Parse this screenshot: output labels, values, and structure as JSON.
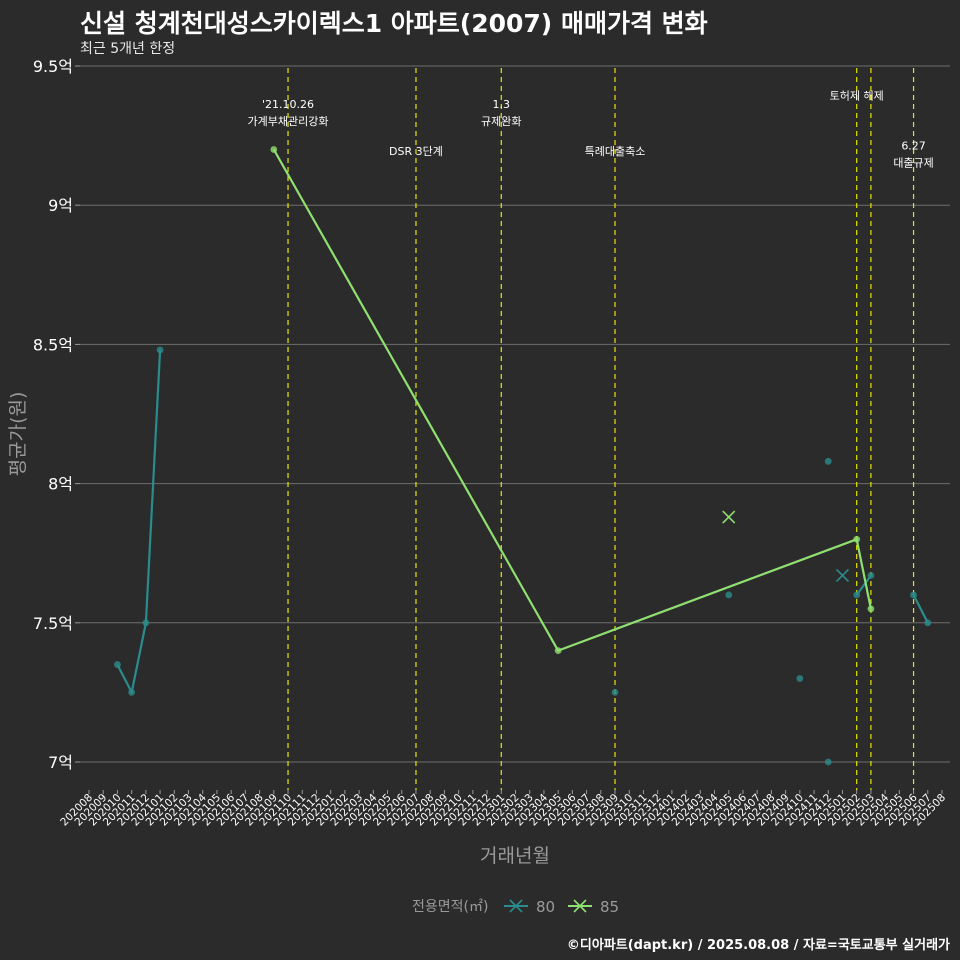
{
  "chart_data": {
    "type": "line",
    "title": "신설 청계천대성스카이렉스1 아파트(2007) 매매가격 변화",
    "subtitle": "최근 5개년 한정",
    "xlabel": "거래년월",
    "ylabel": "평균가(원)",
    "caption": "©디아파트(dapt.kr) / 2025.08.08 / 자료=국토교통부 실거래가",
    "legend_title": "전용면적(㎡)",
    "legend_position": "bottom",
    "ylim": [
      6.88,
      9.5
    ],
    "y_ticks": [
      {
        "value": 7.0,
        "label": "7억"
      },
      {
        "value": 7.5,
        "label": "7.5억"
      },
      {
        "value": 8.0,
        "label": "8억"
      },
      {
        "value": 8.5,
        "label": "8.5억"
      },
      {
        "value": 9.0,
        "label": "9억"
      },
      {
        "value": 9.5,
        "label": "9.5억"
      }
    ],
    "categories": [
      "202008",
      "202009",
      "202010",
      "202011",
      "202012",
      "202101",
      "202102",
      "202103",
      "202104",
      "202105",
      "202106",
      "202107",
      "202108",
      "202109",
      "202110",
      "202111",
      "202112",
      "202201",
      "202202",
      "202203",
      "202204",
      "202205",
      "202206",
      "202207",
      "202208",
      "202209",
      "202210",
      "202211",
      "202212",
      "202301",
      "202302",
      "202303",
      "202304",
      "202305",
      "202306",
      "202307",
      "202308",
      "202309",
      "202310",
      "202311",
      "202312",
      "202401",
      "202402",
      "202403",
      "202404",
      "202405",
      "202406",
      "202407",
      "202408",
      "202409",
      "202410",
      "202411",
      "202412",
      "202501",
      "202502",
      "202503",
      "202504",
      "202505",
      "202506",
      "202507",
      "202508"
    ],
    "series": [
      {
        "name": "80",
        "color": "#2a8c8c",
        "line_segments": [
          [
            {
              "x": "202010",
              "y": 7.35
            },
            {
              "x": "202011",
              "y": 7.25
            },
            {
              "x": "202012",
              "y": 7.5
            },
            {
              "x": "202101",
              "y": 8.48
            }
          ],
          [
            {
              "x": "202502",
              "y": 7.6
            },
            {
              "x": "202503",
              "y": 7.67
            }
          ],
          [
            {
              "x": "202506",
              "y": 7.6
            },
            {
              "x": "202507",
              "y": 7.5
            }
          ]
        ],
        "points": [
          {
            "x": "202010",
            "y": 7.35
          },
          {
            "x": "202011",
            "y": 7.25
          },
          {
            "x": "202012",
            "y": 7.5
          },
          {
            "x": "202101",
            "y": 8.48
          },
          {
            "x": "202309",
            "y": 7.25
          },
          {
            "x": "202405",
            "y": 7.6
          },
          {
            "x": "202410",
            "y": 7.3
          },
          {
            "x": "202412",
            "y": 8.08
          },
          {
            "x": "202412",
            "y": 7.0
          },
          {
            "x": "202502",
            "y": 7.6
          },
          {
            "x": "202503",
            "y": 7.67
          },
          {
            "x": "202506",
            "y": 7.6
          },
          {
            "x": "202507",
            "y": 7.5
          }
        ],
        "cross_markers": [
          {
            "x": "202501",
            "y": 7.67
          }
        ]
      },
      {
        "name": "85",
        "color": "#90e070",
        "line_segments": [
          [
            {
              "x": "202109",
              "y": 9.2
            },
            {
              "x": "202305",
              "y": 7.4
            },
            {
              "x": "202502",
              "y": 7.8
            },
            {
              "x": "202503",
              "y": 7.55
            }
          ]
        ],
        "points": [
          {
            "x": "202109",
            "y": 9.2
          },
          {
            "x": "202305",
            "y": 7.4
          },
          {
            "x": "202502",
            "y": 7.8
          },
          {
            "x": "202503",
            "y": 7.55
          }
        ],
        "cross_markers": [
          {
            "x": "202405",
            "y": 7.88
          }
        ]
      }
    ],
    "annotations": [
      {
        "x": "202110",
        "lines": [
          "'21.10.26",
          "가계부채관리강화"
        ],
        "label_y": 9.35
      },
      {
        "x": "202207",
        "lines": [
          "DSR 3단계"
        ],
        "label_y": 9.18
      },
      {
        "x": "202301",
        "lines": [
          "1.3",
          "규제완화"
        ],
        "label_y": 9.35
      },
      {
        "x": "202309",
        "lines": [
          "특례대출축소"
        ],
        "label_y": 9.18
      },
      {
        "x": "202502",
        "lines": [
          "토허제 해제"
        ],
        "label_y": 9.38
      },
      {
        "x": "202503",
        "lines": [],
        "label_y": 9.38
      },
      {
        "x": "202506",
        "lines": [
          "6.27",
          "대출규제"
        ],
        "label_y": 9.2
      }
    ]
  }
}
